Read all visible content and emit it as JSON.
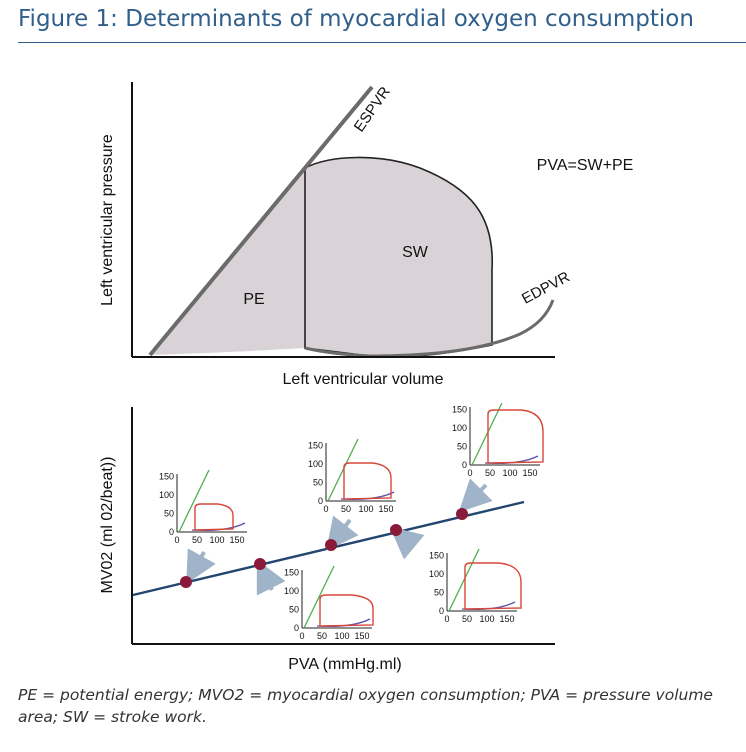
{
  "figure": {
    "title": "Figure 1: Determinants of myocardial oxygen consumption",
    "caption": "PE = potential energy; MVO2 = myocardial oxygen consumption; PVA = pressure volume area; SW = stroke work."
  },
  "pv_loop": {
    "y_axis_label": "Left ventricular pressure",
    "x_axis_label": "Left ventricular volume",
    "espvr_label": "ESPVR",
    "edpvr_label": "EDPVR",
    "sw_label": "SW",
    "pe_label": "PE",
    "equation": "PVA=SW+PE"
  },
  "mvo2_plot": {
    "y_axis_label": "MV02 (ml 02/beat))",
    "x_axis_label": "PVA (mmHg.ml)",
    "inset_y_ticks": [
      "150",
      "100",
      "50",
      "0"
    ],
    "inset_x_ticks": [
      "0",
      "50",
      "100",
      "150"
    ]
  },
  "colors": {
    "title": "#2f5f8a",
    "loop_fill": "#d9d3d7",
    "espvr_line": "#6b6b6b",
    "regression_line": "#22466f",
    "data_point": "#8b1a3a",
    "arrow": "#9fb4c8",
    "inset_loop": "#d7483a",
    "inset_espvr": "#4caf50",
    "inset_edpvr": "#5b4fa8"
  }
}
